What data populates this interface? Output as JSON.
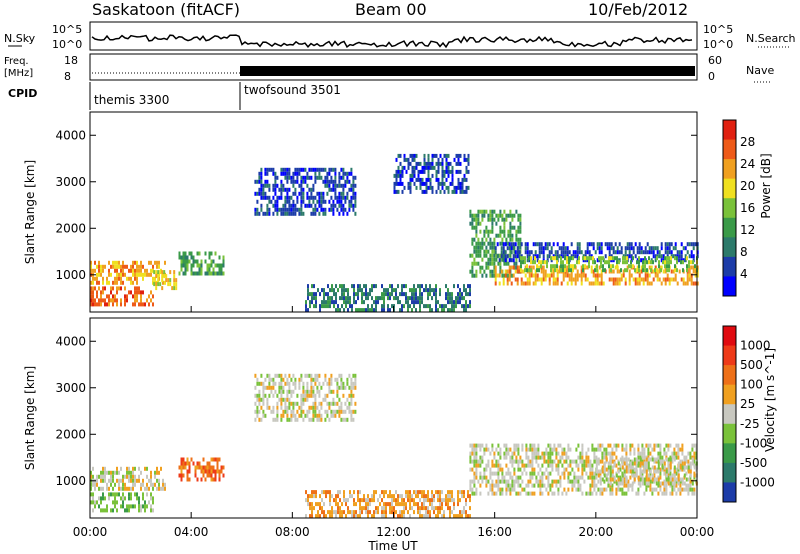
{
  "header": {
    "title": "Saskatoon (fitACF)",
    "beam": "Beam 00",
    "date": "10/Feb/2012"
  },
  "top_strips": {
    "nsky_label": "N.Sky",
    "nsearch_label": "N.Search",
    "freq_label_line1": "Freq.",
    "freq_label_line2": "[MHz]",
    "nave_label": "Nave",
    "cpid_label": "CPID",
    "nsky_ticks": [
      "10^5",
      "10^0"
    ],
    "nsearch_ticks": [
      "10^5",
      "10^0"
    ],
    "freq_ticks": [
      "18",
      "8"
    ],
    "nave_ticks": [
      "60",
      "0"
    ],
    "cpid_segments": [
      {
        "name": "themis 3300",
        "start": 0,
        "end": 6
      },
      {
        "name": "twofsound 3501",
        "start": 6,
        "end": 24
      }
    ]
  },
  "colors": {
    "power_scale": [
      "#0000ff",
      "#1c3ca8",
      "#2c7a6a",
      "#3a9a48",
      "#7ac23a",
      "#f0e020",
      "#f0a020",
      "#ee5a18",
      "#e02010"
    ],
    "velocity_scale": [
      "#1c3ca8",
      "#2c7a6a",
      "#3a9a48",
      "#7ac23a",
      "#c8c8c0",
      "#f0a020",
      "#ee7018",
      "#ee3a18",
      "#e00a10"
    ]
  },
  "chart_data": [
    {
      "type": "heatmap",
      "panel": "power",
      "ylabel": "Slant Range [km]",
      "xlabel": "Time UT",
      "x_range_hours": [
        0,
        24
      ],
      "y_range_km": [
        200,
        4500
      ],
      "yticks": [
        "1000",
        "2000",
        "3000",
        "4000"
      ],
      "xticks": [
        "00:00",
        "04:00",
        "08:00",
        "12:00",
        "16:00",
        "20:00",
        "00:00"
      ],
      "colorbar_label": "Power [dB]",
      "colorbar_ticks": [
        "4",
        "8",
        "12",
        "16",
        "20",
        "24",
        "28"
      ],
      "regions": [
        {
          "t0": 0.0,
          "t1": 3.0,
          "r0": 800,
          "r1": 1300,
          "level": 6
        },
        {
          "t0": 0.0,
          "t1": 2.5,
          "r0": 400,
          "r1": 750,
          "level": 7
        },
        {
          "t0": 2.5,
          "t1": 3.4,
          "r0": 700,
          "r1": 1100,
          "level": 5
        },
        {
          "t0": 3.5,
          "t1": 5.3,
          "r0": 1000,
          "r1": 1500,
          "level": 3
        },
        {
          "t0": 6.5,
          "t1": 10.5,
          "r0": 2300,
          "r1": 3300,
          "level": 1
        },
        {
          "t0": 8.5,
          "t1": 15.0,
          "r0": 200,
          "r1": 800,
          "level": 2
        },
        {
          "t0": 12.0,
          "t1": 15.0,
          "r0": 2800,
          "r1": 3600,
          "level": 1
        },
        {
          "t0": 15.0,
          "t1": 17.0,
          "r0": 1000,
          "r1": 2400,
          "level": 3
        },
        {
          "t0": 16.0,
          "t1": 24.0,
          "r0": 1300,
          "r1": 1700,
          "level": 1
        },
        {
          "t0": 16.0,
          "t1": 24.0,
          "r0": 800,
          "r1": 1200,
          "level": 6
        },
        {
          "t0": 17.0,
          "t1": 24.0,
          "r0": 1100,
          "r1": 1400,
          "level": 4
        }
      ]
    },
    {
      "type": "heatmap",
      "panel": "velocity",
      "ylabel": "Slant Range [km]",
      "xlabel": "Time UT",
      "x_range_hours": [
        0,
        24
      ],
      "y_range_km": [
        200,
        4500
      ],
      "yticks": [
        "1000",
        "2000",
        "3000",
        "4000"
      ],
      "xticks": [
        "00:00",
        "04:00",
        "08:00",
        "12:00",
        "16:00",
        "20:00",
        "00:00"
      ],
      "colorbar_label": "Velocity [m s^-1]",
      "colorbar_ticks": [
        "1000",
        "500",
        "100",
        "25",
        "-25",
        "-100",
        "-500",
        "-1000"
      ],
      "regions": [
        {
          "t0": 0.0,
          "t1": 3.0,
          "r0": 800,
          "r1": 1300,
          "level": 4
        },
        {
          "t0": 0.0,
          "t1": 2.5,
          "r0": 400,
          "r1": 750,
          "level": 3
        },
        {
          "t0": 3.5,
          "t1": 5.3,
          "r0": 1000,
          "r1": 1500,
          "level": 6
        },
        {
          "t0": 6.5,
          "t1": 10.5,
          "r0": 2300,
          "r1": 3300,
          "level": 4
        },
        {
          "t0": 8.5,
          "t1": 15.0,
          "r0": 200,
          "r1": 800,
          "level": 5
        },
        {
          "t0": 15.0,
          "t1": 24.0,
          "r0": 700,
          "r1": 1800,
          "level": 4
        },
        {
          "t0": 20.0,
          "t1": 24.0,
          "r0": 900,
          "r1": 1500,
          "level": 4
        }
      ]
    }
  ],
  "xlabel": "Time UT"
}
